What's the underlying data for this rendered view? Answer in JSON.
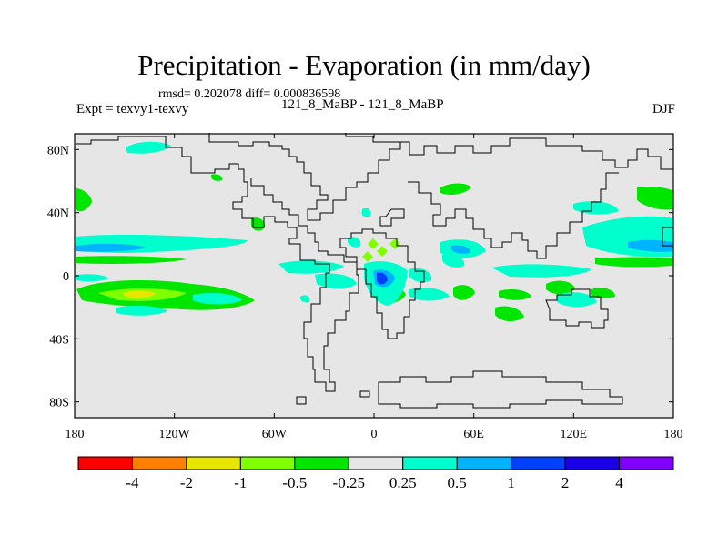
{
  "title": "Precipitation - Evaporation (in mm/day)",
  "stats": "rmsd= 0.202078 diff= 0.000836598",
  "experiment": "Expt = texvy1-texvy",
  "case_label": "121_8_MaBP - 121_8_MaBP",
  "season": "DJF",
  "map": {
    "background_color": "#e6e6e6",
    "lat_range": [
      -90,
      90
    ],
    "lon_range": [
      -180,
      180
    ],
    "lat_ticks": [
      {
        "value": 80,
        "label": "80N"
      },
      {
        "value": 40,
        "label": "40N"
      },
      {
        "value": 0,
        "label": "0"
      },
      {
        "value": -40,
        "label": "40S"
      },
      {
        "value": -80,
        "label": "80S"
      }
    ],
    "lon_ticks": [
      {
        "value": -180,
        "label": "180"
      },
      {
        "value": -120,
        "label": "120W"
      },
      {
        "value": -60,
        "label": "60W"
      },
      {
        "value": 0,
        "label": "0"
      },
      {
        "value": 60,
        "label": "60E"
      },
      {
        "value": 120,
        "label": "120E"
      },
      {
        "value": 180,
        "label": "180"
      }
    ]
  },
  "colorbar": {
    "colors": [
      "#ff0000",
      "#ff8000",
      "#e6e600",
      "#80ff00",
      "#00e600",
      "#e6e6e6",
      "#00ffcc",
      "#00b3ff",
      "#0040ff",
      "#1a00e6",
      "#8000ff"
    ],
    "labels": [
      "-4",
      "-2",
      "-1",
      "-0.5",
      "-0.25",
      "0.25",
      "0.5",
      "1",
      "2",
      "4"
    ]
  }
}
